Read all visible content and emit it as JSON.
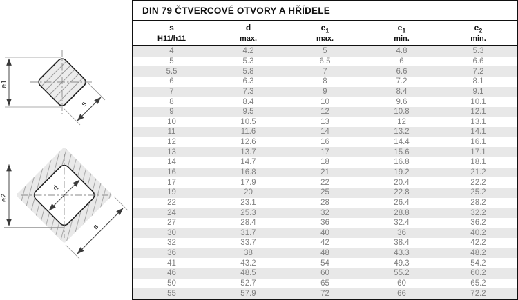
{
  "title": "DIN 79 ČTVERCOVÉ OTVORY A HŘÍDELE",
  "table": {
    "headers": [
      {
        "top": "s",
        "sub": "",
        "bottom": "H11/h11"
      },
      {
        "top": "d",
        "sub": "",
        "bottom": "max."
      },
      {
        "top": "e",
        "sub": "1",
        "bottom": "max."
      },
      {
        "top": "e",
        "sub": "1",
        "bottom": "min."
      },
      {
        "top": "e",
        "sub": "2",
        "bottom": "min."
      }
    ],
    "rows": [
      [
        "4",
        "4.2",
        "5",
        "4.8",
        "5.3"
      ],
      [
        "5",
        "5.3",
        "6.5",
        "6",
        "6.6"
      ],
      [
        "5.5",
        "5.8",
        "7",
        "6.6",
        "7.2"
      ],
      [
        "6",
        "6.3",
        "8",
        "7.2",
        "8.1"
      ],
      [
        "7",
        "7.3",
        "9",
        "8.4",
        "9.1"
      ],
      [
        "8",
        "8.4",
        "10",
        "9.6",
        "10.1"
      ],
      [
        "9",
        "9.5",
        "12",
        "10.8",
        "12.1"
      ],
      [
        "10",
        "10.5",
        "13",
        "12",
        "13.1"
      ],
      [
        "11",
        "11.6",
        "14",
        "13.2",
        "14.1"
      ],
      [
        "12",
        "12.6",
        "16",
        "14.4",
        "16.1"
      ],
      [
        "13",
        "13.7",
        "17",
        "15.6",
        "17.1"
      ],
      [
        "14",
        "14.7",
        "18",
        "16.8",
        "18.1"
      ],
      [
        "16",
        "16.8",
        "21",
        "19.2",
        "21.2"
      ],
      [
        "17",
        "17.9",
        "22",
        "20.4",
        "22.2"
      ],
      [
        "19",
        "20",
        "25",
        "22.8",
        "25.2"
      ],
      [
        "22",
        "23.1",
        "28",
        "26.4",
        "28.2"
      ],
      [
        "24",
        "25.3",
        "32",
        "28.8",
        "32.2"
      ],
      [
        "27",
        "28.4",
        "36",
        "32.4",
        "36.2"
      ],
      [
        "30",
        "31.7",
        "40",
        "36",
        "40.2"
      ],
      [
        "32",
        "33.7",
        "42",
        "38.4",
        "42.2"
      ],
      [
        "36",
        "38",
        "48",
        "43.3",
        "48.2"
      ],
      [
        "41",
        "43.2",
        "54",
        "49.3",
        "54.2"
      ],
      [
        "46",
        "48.5",
        "60",
        "55.2",
        "60.2"
      ],
      [
        "50",
        "52.7",
        "65",
        "60",
        "65.2"
      ],
      [
        "55",
        "57.9",
        "72",
        "66",
        "72.2"
      ]
    ]
  },
  "diagrams": {
    "shaft": {
      "label_e1": "e1",
      "label_s": "s"
    },
    "hole": {
      "label_e2": "e2",
      "label_d": "d",
      "label_s": "s"
    }
  },
  "colors": {
    "table_border": "#111111",
    "row_stripe": "#e8e8e8",
    "data_text": "#818181",
    "header_text": "#111111",
    "shaft_fill": "#ececec",
    "block_fill": "#e9e9e9"
  }
}
